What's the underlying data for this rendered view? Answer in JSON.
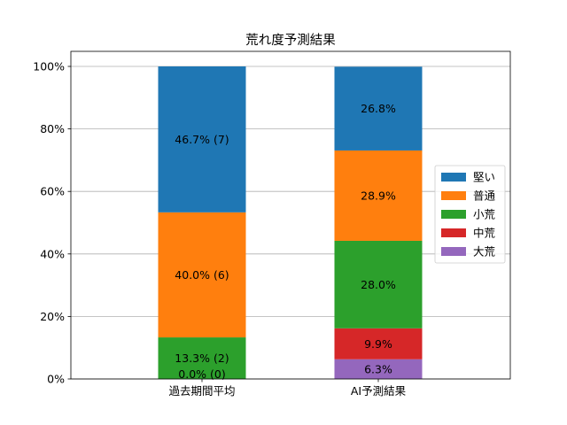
{
  "chart_data": {
    "type": "bar",
    "stacked": true,
    "title": "荒れ度予測結果",
    "xlabel": "",
    "ylabel": "",
    "ylim": [
      0,
      100
    ],
    "y_ticks": [
      "0%",
      "20%",
      "40%",
      "60%",
      "80%",
      "100%"
    ],
    "y_tick_values": [
      0,
      20,
      40,
      60,
      80,
      100
    ],
    "grid": "y",
    "legend_position": "center-right",
    "categories": [
      "過去期間平均",
      "AI予測結果"
    ],
    "series": [
      {
        "name": "大荒",
        "color": "#9467bd",
        "values": [
          0.0,
          6.3
        ],
        "labels": [
          "",
          "6.3%"
        ]
      },
      {
        "name": "中荒",
        "color": "#d62728",
        "values": [
          0.0,
          9.9
        ],
        "labels": [
          "",
          "9.9%"
        ]
      },
      {
        "name": "小荒",
        "color": "#2ca02c",
        "values": [
          13.3,
          28.0
        ],
        "labels": [
          "13.3% (2)",
          "28.0%"
        ]
      },
      {
        "name": "普通",
        "color": "#ff7f0e",
        "values": [
          40.0,
          28.9
        ],
        "labels": [
          "40.0% (6)",
          "28.9%"
        ]
      },
      {
        "name": "堅い",
        "color": "#1f77b4",
        "values": [
          46.7,
          26.8
        ],
        "labels": [
          "46.7% (7)",
          "26.8%"
        ]
      }
    ],
    "extra_labels": [
      {
        "category": "過去期間平均",
        "text": "0.0% (0)",
        "value": 0.0
      }
    ],
    "legend_order": [
      "堅い",
      "普通",
      "小荒",
      "中荒",
      "大荒"
    ]
  }
}
